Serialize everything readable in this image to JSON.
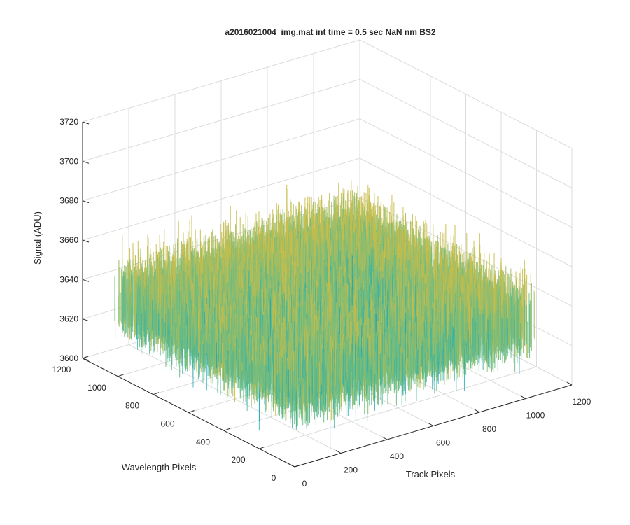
{
  "chart_data": {
    "type": "surface",
    "title": "a2016021004_img.mat int time = 0.5 sec  NaN nm BS2",
    "xlabel": "Track Pixels",
    "ylabel": "Wavelength Pixels",
    "zlabel": "Signal (ADU)",
    "xlim": [
      0,
      1200
    ],
    "ylim": [
      0,
      1200
    ],
    "zlim": [
      3600,
      3720
    ],
    "x_ticks": [
      "0",
      "200",
      "400",
      "600",
      "800",
      "1000",
      "1200"
    ],
    "y_ticks": [
      "0",
      "200",
      "400",
      "600",
      "800",
      "1000",
      "1200"
    ],
    "z_ticks": [
      "3600",
      "3620",
      "3640",
      "3660",
      "3680",
      "3700",
      "3720"
    ],
    "grid": true,
    "surface": {
      "x_range": [
        0,
        1024
      ],
      "y_range": [
        0,
        1024
      ],
      "mean_signal": 3637,
      "noise_min": 3605,
      "noise_max": 3700,
      "colormap": "parula"
    }
  }
}
